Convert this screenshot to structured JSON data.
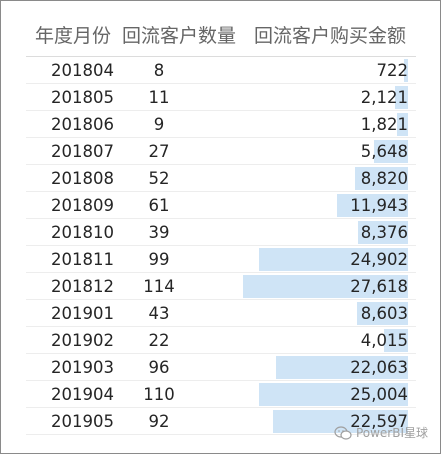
{
  "table": {
    "headers": {
      "month": "年度月份",
      "count": "回流客户数量",
      "amount": "回流客户购买金额"
    },
    "rows": [
      {
        "month": "201804",
        "count": "8",
        "amount": "722",
        "amount_value": 722
      },
      {
        "month": "201805",
        "count": "11",
        "amount": "2,121",
        "amount_value": 2121
      },
      {
        "month": "201806",
        "count": "9",
        "amount": "1,821",
        "amount_value": 1821
      },
      {
        "month": "201807",
        "count": "27",
        "amount": "5,648",
        "amount_value": 5648
      },
      {
        "month": "201808",
        "count": "52",
        "amount": "8,820",
        "amount_value": 8820
      },
      {
        "month": "201809",
        "count": "61",
        "amount": "11,943",
        "amount_value": 11943
      },
      {
        "month": "201810",
        "count": "39",
        "amount": "8,376",
        "amount_value": 8376
      },
      {
        "month": "201811",
        "count": "99",
        "amount": "24,902",
        "amount_value": 24902
      },
      {
        "month": "201812",
        "count": "114",
        "amount": "27,618",
        "amount_value": 27618
      },
      {
        "month": "201901",
        "count": "43",
        "amount": "8,603",
        "amount_value": 8603
      },
      {
        "month": "201902",
        "count": "22",
        "amount": "4,015",
        "amount_value": 4015
      },
      {
        "month": "201903",
        "count": "96",
        "amount": "22,063",
        "amount_value": 22063
      },
      {
        "month": "201904",
        "count": "110",
        "amount": "25,004",
        "amount_value": 25004
      },
      {
        "month": "201905",
        "count": "92",
        "amount": "22,597",
        "amount_value": 22597
      }
    ],
    "bar_color": "#cfe4f6"
  },
  "watermark": {
    "text": "PowerBI星球",
    "icon": "wechat-icon"
  }
}
